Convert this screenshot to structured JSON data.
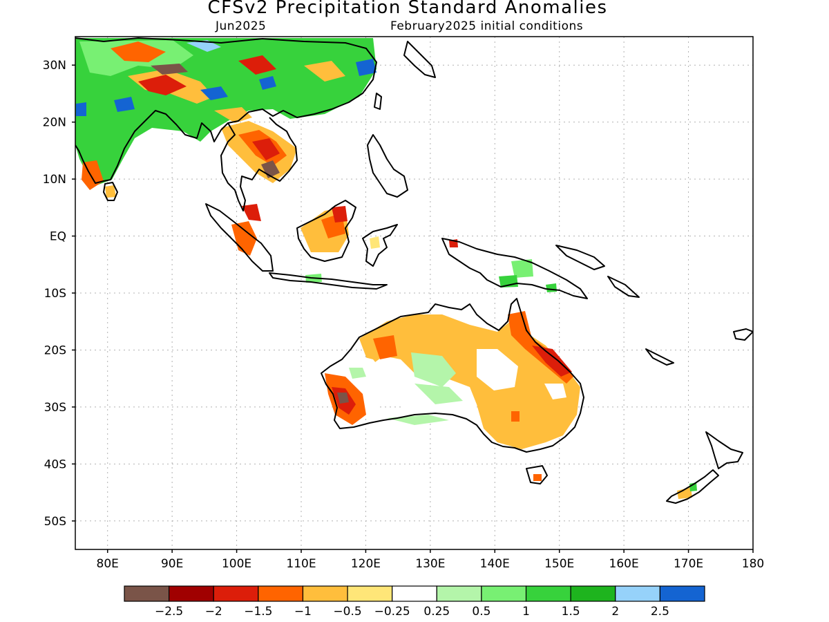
{
  "title": "CFSv2 Precipitation Standard Anomalies",
  "subtitle_left": "Jun2025",
  "subtitle_right": "February2025 initial conditions",
  "map": {
    "lon_range": [
      75,
      180
    ],
    "lat_range": [
      -55,
      35
    ],
    "lat_ticks": [
      {
        "value": 30,
        "label": "30N"
      },
      {
        "value": 20,
        "label": "20N"
      },
      {
        "value": 10,
        "label": "10N"
      },
      {
        "value": 0,
        "label": "EQ"
      },
      {
        "value": -10,
        "label": "10S"
      },
      {
        "value": -20,
        "label": "20S"
      },
      {
        "value": -30,
        "label": "30S"
      },
      {
        "value": -40,
        "label": "40S"
      },
      {
        "value": -50,
        "label": "50S"
      }
    ],
    "lon_ticks": [
      {
        "value": 80,
        "label": "80E"
      },
      {
        "value": 90,
        "label": "90E"
      },
      {
        "value": 100,
        "label": "100E"
      },
      {
        "value": 110,
        "label": "110E"
      },
      {
        "value": 120,
        "label": "120E"
      },
      {
        "value": 130,
        "label": "130E"
      },
      {
        "value": 140,
        "label": "140E"
      },
      {
        "value": 150,
        "label": "150E"
      },
      {
        "value": 160,
        "label": "160E"
      },
      {
        "value": 170,
        "label": "170E"
      },
      {
        "value": 180,
        "label": "180"
      }
    ]
  },
  "colorbar": {
    "colors": [
      "#7a5448",
      "#a00000",
      "#dc1e0a",
      "#ff6400",
      "#ffbe3c",
      "#ffe678",
      "#ffffff",
      "#b4f5aa",
      "#78f073",
      "#37d23c",
      "#1eb41e",
      "#96d2fa",
      "#1464d2"
    ],
    "labels": [
      "−2.5",
      "−2",
      "−1.5",
      "−1",
      "−0.5",
      "−0.25",
      "0.25",
      "0.5",
      "1",
      "1.5",
      "2",
      "2.5"
    ]
  }
}
